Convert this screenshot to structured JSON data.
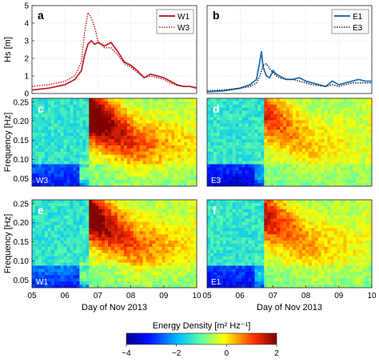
{
  "chart_data": [
    {
      "panel": "a",
      "type": "line",
      "ylabel": "Hs [m]",
      "xlim": [
        5,
        10
      ],
      "ylim": [
        0,
        5
      ],
      "yticks": [
        "0",
        "1",
        "2",
        "3",
        "4",
        "5"
      ],
      "series": [
        {
          "name": "W1",
          "color": "#c0262d",
          "dash": "solid",
          "x": [
            5.0,
            5.5,
            6.0,
            6.3,
            6.5,
            6.6,
            6.7,
            6.8,
            6.9,
            7.0,
            7.2,
            7.4,
            7.6,
            7.8,
            8.0,
            8.2,
            8.4,
            8.6,
            8.8,
            9.0,
            9.2,
            9.4,
            9.6,
            9.8,
            10.0
          ],
          "y": [
            0.2,
            0.3,
            0.5,
            0.8,
            1.3,
            2.2,
            2.8,
            3.0,
            2.8,
            2.9,
            2.7,
            2.9,
            2.4,
            1.8,
            1.6,
            1.3,
            0.9,
            1.1,
            1.0,
            0.9,
            0.7,
            0.5,
            0.4,
            0.4,
            0.3
          ]
        },
        {
          "name": "W3",
          "color": "#c0262d",
          "dash": "dotted",
          "x": [
            5.0,
            5.5,
            6.0,
            6.3,
            6.5,
            6.6,
            6.7,
            6.8,
            6.9,
            7.0,
            7.2,
            7.4,
            7.6,
            7.8,
            8.0,
            8.2,
            8.4,
            8.6,
            8.8,
            9.0,
            9.2,
            9.4,
            9.6,
            9.8,
            10.0
          ],
          "y": [
            0.4,
            0.5,
            0.7,
            1.0,
            1.8,
            3.5,
            4.6,
            4.3,
            3.8,
            3.0,
            2.6,
            2.6,
            2.2,
            1.7,
            1.5,
            1.2,
            0.9,
            1.0,
            0.9,
            0.8,
            0.6,
            0.45,
            0.4,
            0.4,
            0.35
          ]
        }
      ]
    },
    {
      "panel": "b",
      "type": "line",
      "xlim": [
        5,
        10
      ],
      "ylim": [
        0,
        5
      ],
      "series": [
        {
          "name": "E1",
          "color": "#1f6fb2",
          "dash": "solid",
          "x": [
            5.0,
            5.5,
            6.0,
            6.3,
            6.5,
            6.6,
            6.65,
            6.7,
            6.8,
            6.9,
            7.0,
            7.1,
            7.2,
            7.4,
            7.6,
            7.8,
            8.0,
            8.2,
            8.4,
            8.6,
            8.8,
            9.0,
            9.2,
            9.4,
            9.6,
            9.8,
            10.0
          ],
          "y": [
            0.1,
            0.15,
            0.3,
            0.5,
            0.8,
            1.8,
            2.4,
            1.5,
            1.0,
            0.9,
            1.3,
            1.1,
            1.0,
            0.8,
            0.8,
            0.9,
            0.7,
            0.6,
            0.5,
            0.4,
            0.7,
            0.5,
            0.6,
            0.7,
            0.8,
            0.7,
            0.7
          ]
        },
        {
          "name": "E3",
          "color": "#1f2a44",
          "dash": "dotted",
          "x": [
            5.0,
            5.5,
            6.0,
            6.3,
            6.5,
            6.6,
            6.65,
            6.7,
            6.8,
            6.9,
            7.0,
            7.1,
            7.2,
            7.4,
            7.6,
            7.8,
            8.0,
            8.2,
            8.4,
            8.6,
            8.8,
            9.0,
            9.2,
            9.4,
            9.6,
            9.8,
            10.0
          ],
          "y": [
            0.15,
            0.2,
            0.3,
            0.4,
            0.6,
            1.0,
            1.3,
            1.6,
            1.7,
            1.4,
            1.2,
            1.0,
            0.9,
            0.8,
            0.8,
            0.7,
            0.6,
            0.5,
            0.45,
            0.4,
            0.5,
            0.4,
            0.5,
            0.6,
            0.6,
            0.6,
            0.6
          ]
        }
      ]
    },
    {
      "panel": "c",
      "type": "heatmap",
      "station": "W3",
      "ylabel": "Frequency [Hz]",
      "xlim": [
        5,
        10
      ],
      "ylim": [
        0.03,
        0.26
      ],
      "yticks": [
        "0.05",
        "0.10",
        "0.15",
        "0.20",
        "0.25"
      ],
      "z_range": [
        -4,
        2
      ],
      "storm_day": 6.72,
      "storm_gain": 4.2,
      "spread": 0.55,
      "lowband": -3.2
    },
    {
      "panel": "d",
      "type": "heatmap",
      "station": "E3",
      "xlim": [
        5,
        10
      ],
      "ylim": [
        0.03,
        0.26
      ],
      "z_range": [
        -4,
        2
      ],
      "storm_day": 6.7,
      "storm_gain": 2.2,
      "spread": 0.55,
      "lowband": -3.5
    },
    {
      "panel": "e",
      "type": "heatmap",
      "station": "W1",
      "ylabel": "Frequency [Hz]",
      "xlim": [
        5,
        10
      ],
      "ylim": [
        0.03,
        0.26
      ],
      "yticks": [
        "0.05",
        "0.10",
        "0.15",
        "0.20",
        "0.25"
      ],
      "z_range": [
        -4,
        2
      ],
      "storm_day": 6.72,
      "storm_gain": 3.6,
      "spread": 0.7,
      "lowband": -3.0
    },
    {
      "panel": "f",
      "type": "heatmap",
      "station": "E1",
      "xlim": [
        5,
        10
      ],
      "ylim": [
        0.03,
        0.26
      ],
      "z_range": [
        -4,
        2
      ],
      "storm_day": 6.7,
      "storm_gain": 2.6,
      "spread": 0.6,
      "lowband": -3.3
    }
  ],
  "x_tick_labels": [
    "05",
    "06",
    "07",
    "08",
    "09",
    "10"
  ],
  "x_axis_label": "Day of Nov 2013",
  "colorbar": {
    "label": "Energy Density [m² Hz⁻¹]",
    "ticks": [
      "−4",
      "−2",
      "0",
      "2"
    ],
    "range": [
      -4,
      2
    ]
  }
}
